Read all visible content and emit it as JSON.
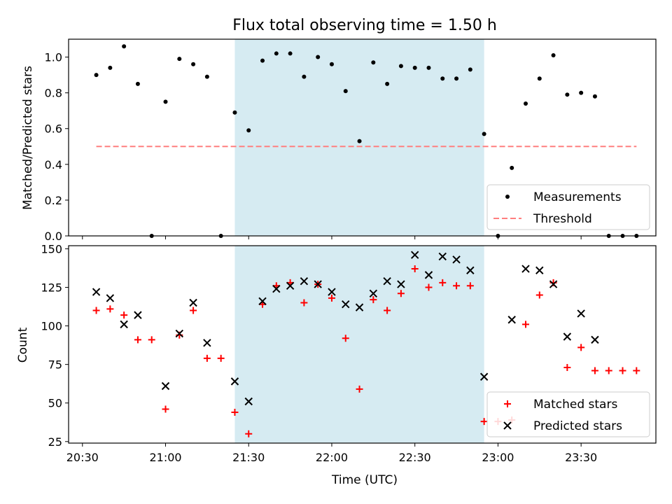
{
  "title": "Flux total observing time = 1.50 h",
  "colors": {
    "shade": "#add8e6",
    "measurement": "#000000",
    "threshold": "#ff7f7f",
    "matched": "#ff0000",
    "predicted": "#000000"
  },
  "chart_data": [
    {
      "type": "scatter",
      "ylabel": "Matched/Predicted stars",
      "xlim": [
        "20:25",
        "23:57"
      ],
      "ylim": [
        0,
        1.1
      ],
      "yticks": [
        "0.0",
        "0.2",
        "0.4",
        "0.6",
        "0.8",
        "1.0"
      ],
      "highlight_span": [
        "21:25",
        "22:55"
      ],
      "legend_position": "lower-right",
      "series": [
        {
          "name": "Measurements",
          "marker": "dot",
          "x": [
            "20:35",
            "20:40",
            "20:45",
            "20:50",
            "20:55",
            "21:00",
            "21:05",
            "21:10",
            "21:15",
            "21:20",
            "21:25",
            "21:30",
            "21:35",
            "21:40",
            "21:45",
            "21:50",
            "21:55",
            "22:00",
            "22:05",
            "22:10",
            "22:15",
            "22:20",
            "22:25",
            "22:30",
            "22:35",
            "22:40",
            "22:45",
            "22:50",
            "22:55",
            "23:00",
            "23:05",
            "23:10",
            "23:15",
            "23:20",
            "23:25",
            "23:30",
            "23:35",
            "23:40",
            "23:45",
            "23:50"
          ],
          "y": [
            0.9,
            0.94,
            1.06,
            0.85,
            0.0,
            0.75,
            0.99,
            0.96,
            0.89,
            0.0,
            0.69,
            0.59,
            0.98,
            1.02,
            1.02,
            0.89,
            1.0,
            0.96,
            0.81,
            0.53,
            0.97,
            0.85,
            0.95,
            0.94,
            0.94,
            0.88,
            0.88,
            0.93,
            0.57,
            0.0,
            0.38,
            0.74,
            0.88,
            1.01,
            0.79,
            0.8,
            0.78,
            0.0,
            0.0,
            0.0
          ]
        }
      ],
      "threshold": {
        "name": "Threshold",
        "value": 0.5,
        "x": [
          "20:35",
          "23:50"
        ]
      }
    },
    {
      "type": "scatter",
      "xlabel": "Time (UTC)",
      "ylabel": "Count",
      "xlim": [
        "20:25",
        "23:57"
      ],
      "ylim": [
        24,
        152
      ],
      "yticks": [
        "25",
        "50",
        "75",
        "100",
        "125",
        "150"
      ],
      "xticks": [
        "20:30",
        "21:00",
        "21:30",
        "22:00",
        "22:30",
        "23:00",
        "23:30"
      ],
      "highlight_span": [
        "21:25",
        "22:55"
      ],
      "legend_position": "lower-right",
      "series": [
        {
          "name": "Matched stars",
          "marker": "plus",
          "x": [
            "20:35",
            "20:40",
            "20:45",
            "20:50",
            "20:55",
            "21:00",
            "21:05",
            "21:10",
            "21:15",
            "21:20",
            "21:25",
            "21:30",
            "21:35",
            "21:40",
            "21:45",
            "21:50",
            "21:55",
            "22:00",
            "22:05",
            "22:10",
            "22:15",
            "22:20",
            "22:25",
            "22:30",
            "22:35",
            "22:40",
            "22:45",
            "22:50",
            "22:55",
            "23:00",
            "23:05",
            "23:10",
            "23:15",
            "23:20",
            "23:25",
            "23:30",
            "23:35",
            "23:40",
            "23:45",
            "23:50"
          ],
          "y": [
            110,
            111,
            107,
            91,
            91,
            46,
            94,
            110,
            79,
            79,
            44,
            30,
            114,
            126,
            128,
            115,
            127,
            118,
            92,
            59,
            117,
            110,
            121,
            137,
            125,
            128,
            126,
            126,
            38,
            38,
            39,
            101,
            120,
            128,
            73,
            86,
            71,
            71,
            71,
            71
          ]
        },
        {
          "name": "Predicted stars",
          "marker": "cross",
          "x": [
            "20:35",
            "20:40",
            "20:45",
            "20:50",
            "21:00",
            "21:05",
            "21:10",
            "21:15",
            "21:25",
            "21:30",
            "21:35",
            "21:40",
            "21:45",
            "21:50",
            "21:55",
            "22:00",
            "22:05",
            "22:10",
            "22:15",
            "22:20",
            "22:25",
            "22:30",
            "22:35",
            "22:40",
            "22:45",
            "22:50",
            "22:55",
            "23:05",
            "23:10",
            "23:15",
            "23:20",
            "23:25",
            "23:30",
            "23:35"
          ],
          "y": [
            122,
            118,
            101,
            107,
            61,
            95,
            115,
            89,
            64,
            51,
            116,
            124,
            126,
            129,
            127,
            122,
            114,
            112,
            121,
            129,
            127,
            146,
            133,
            145,
            143,
            136,
            67,
            104,
            137,
            136,
            127,
            93,
            108,
            91
          ]
        }
      ]
    }
  ]
}
